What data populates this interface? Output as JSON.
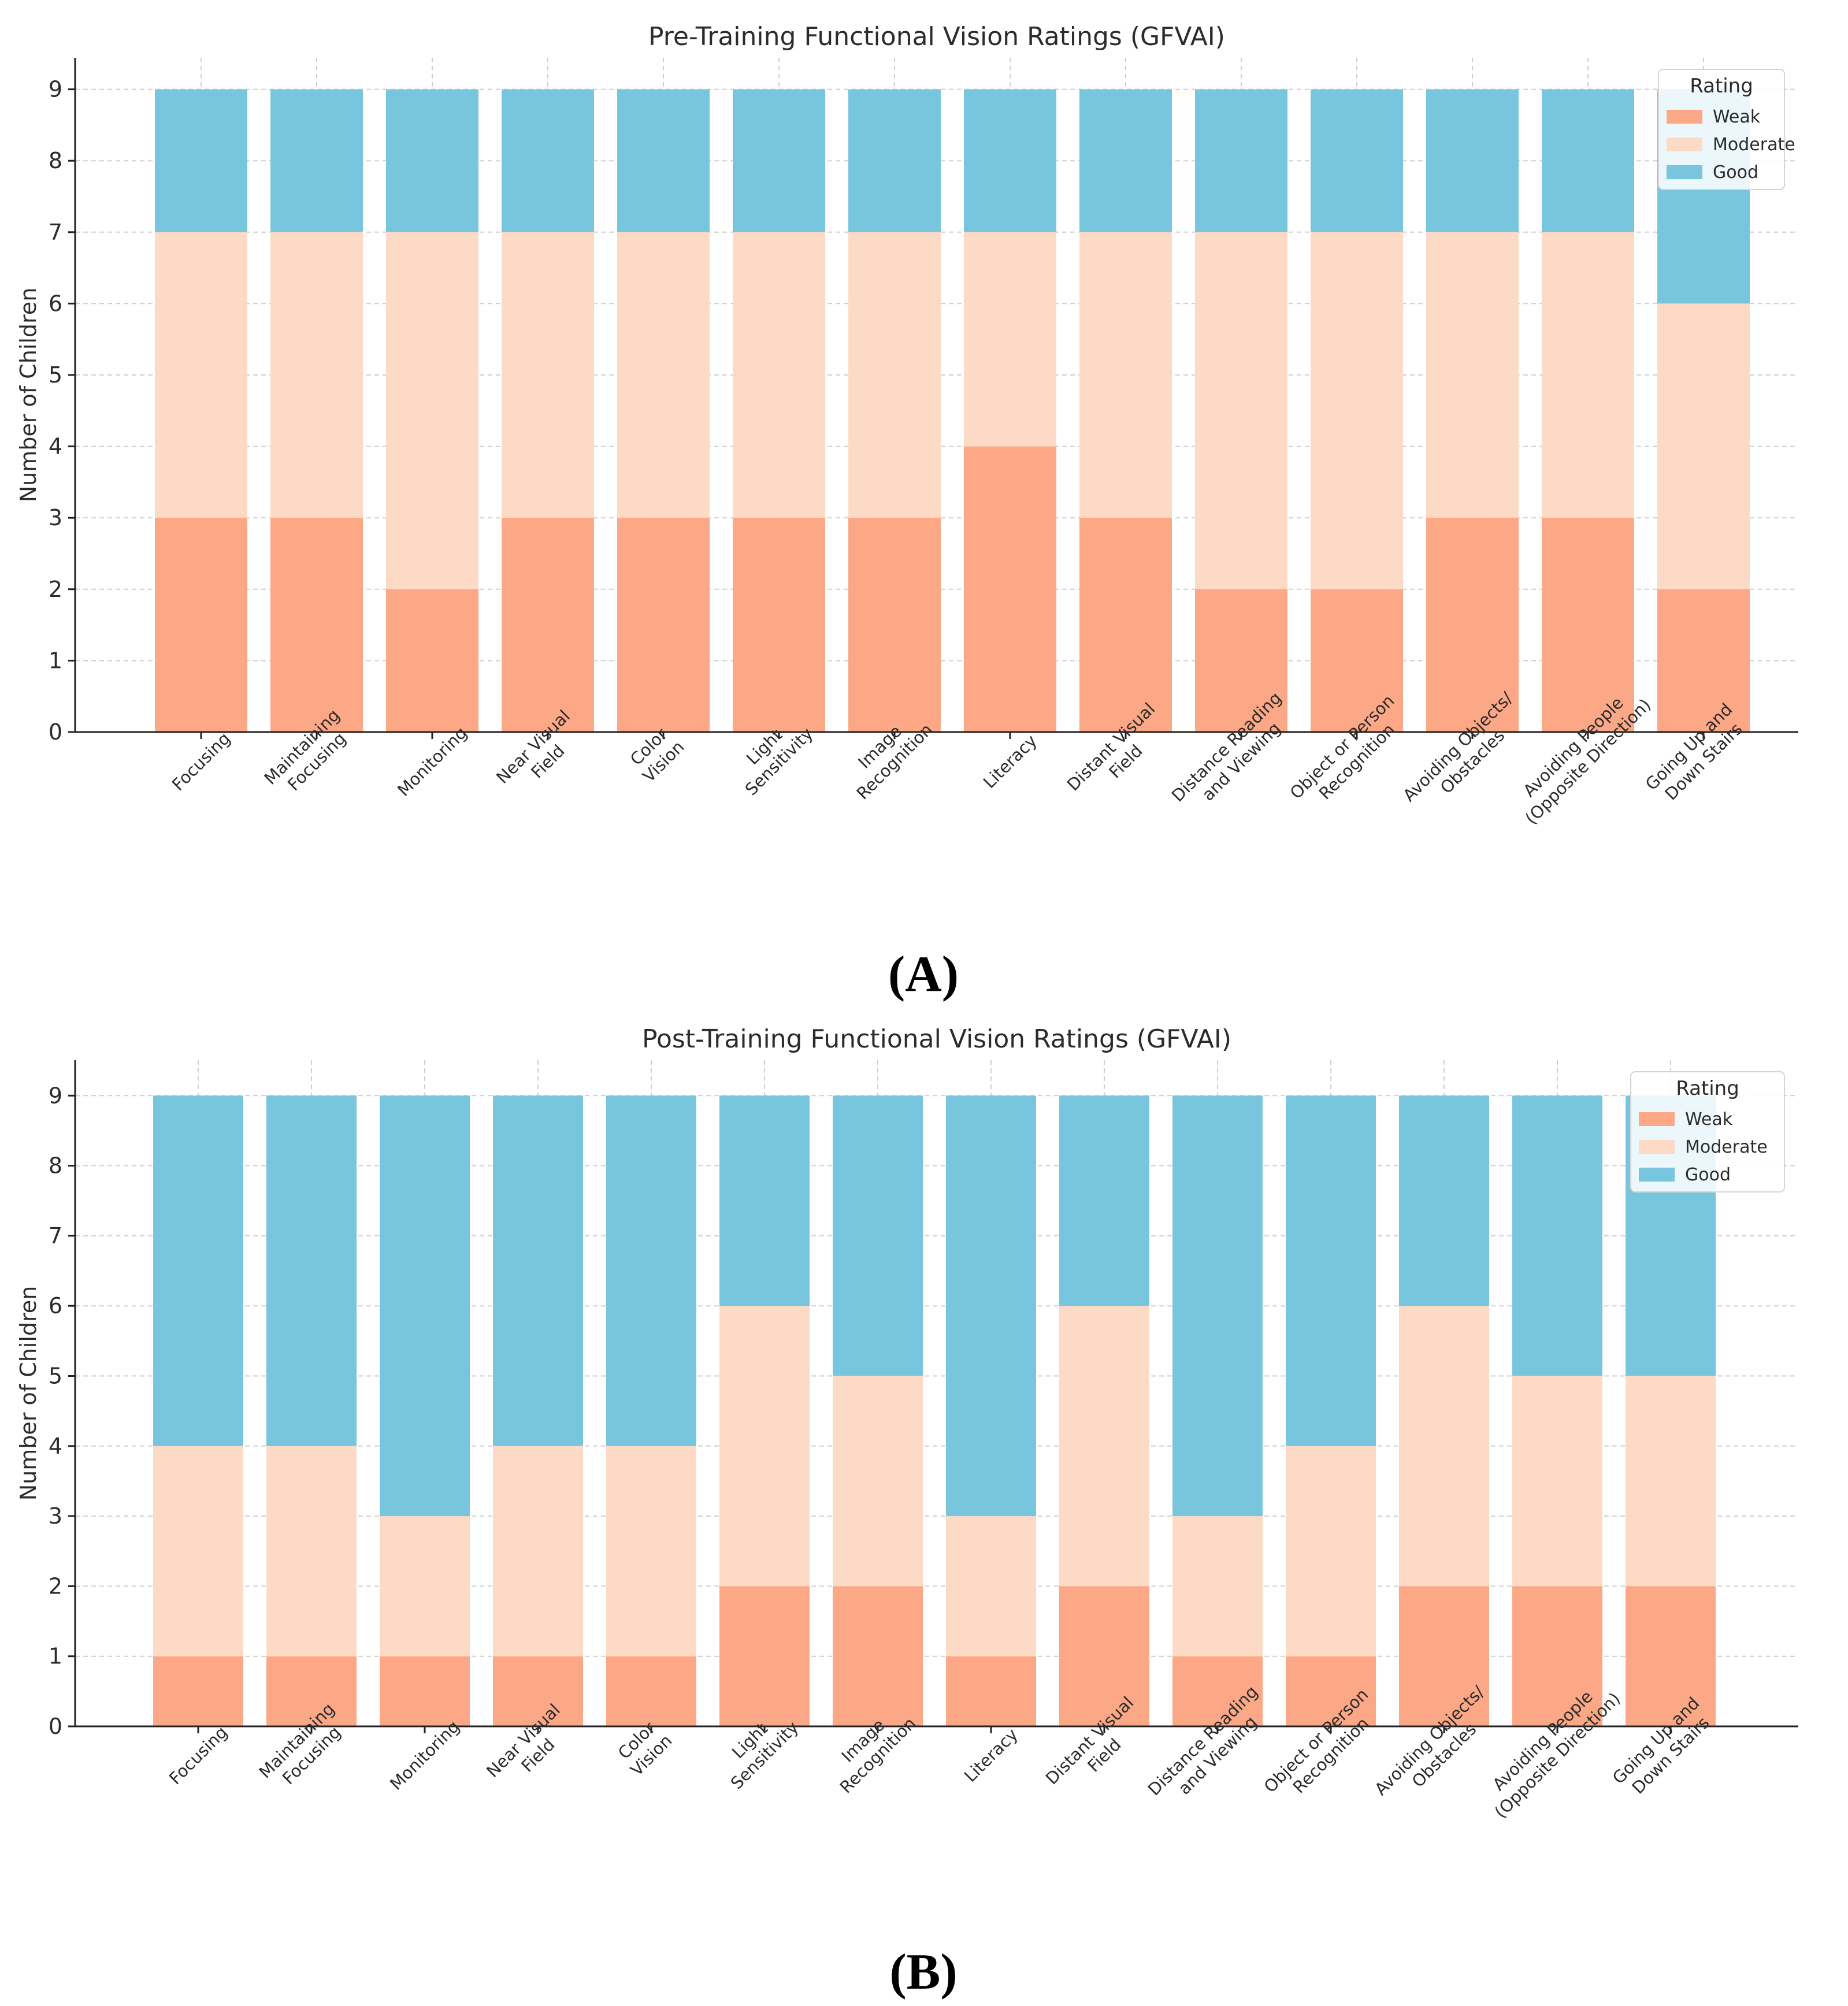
{
  "rating_colors": {
    "Weak": "#FCA886",
    "Moderate": "#FDDAC5",
    "Good": "#78C5DE"
  },
  "chart_data": [
    {
      "type": "bar",
      "stacked": true,
      "title": "Pre-Training Functional Vision Ratings (GFVAI)",
      "panel_label": "(A)",
      "xlabel": "",
      "ylabel": "Number of Children",
      "ylim": [
        0,
        9.4
      ],
      "yticks": [
        0,
        1,
        2,
        3,
        4,
        5,
        6,
        7,
        8,
        9
      ],
      "grid": true,
      "legend_title": "Rating",
      "legend_position": "top-right",
      "categories": [
        [
          "Focusing"
        ],
        [
          "Maintaining",
          "Focusing"
        ],
        [
          "Monitoring"
        ],
        [
          "Near Visual",
          "Field"
        ],
        [
          "Color",
          "Vision"
        ],
        [
          "Light",
          "Sensitivity"
        ],
        [
          "Image",
          "Recognition"
        ],
        [
          "Literacy"
        ],
        [
          "Distant Visual",
          "Field"
        ],
        [
          "Distance Reading",
          "and Viewing"
        ],
        [
          "Object or Person",
          "Recognition"
        ],
        [
          "Avoiding Objects/",
          "Obstacles"
        ],
        [
          "Avoiding People",
          "(Opposite Direction)"
        ],
        [
          "Going Up and",
          "Down Stairs"
        ]
      ],
      "series": [
        {
          "name": "Weak",
          "values": [
            3,
            3,
            2,
            3,
            3,
            3,
            3,
            4,
            3,
            2,
            2,
            3,
            3,
            2
          ]
        },
        {
          "name": "Moderate",
          "values": [
            4,
            4,
            5,
            4,
            4,
            4,
            4,
            3,
            4,
            5,
            5,
            4,
            4,
            4
          ]
        },
        {
          "name": "Good",
          "values": [
            2,
            2,
            2,
            2,
            2,
            2,
            2,
            2,
            2,
            2,
            2,
            2,
            2,
            3
          ]
        }
      ]
    },
    {
      "type": "bar",
      "stacked": true,
      "title": "Post-Training Functional Vision Ratings (GFVAI)",
      "panel_label": "(B)",
      "xlabel": "",
      "ylabel": "Number of Children",
      "ylim": [
        0,
        9.4
      ],
      "yticks": [
        0,
        1,
        2,
        3,
        4,
        5,
        6,
        7,
        8,
        9
      ],
      "grid": true,
      "legend_title": "Rating",
      "legend_position": "top-right",
      "categories": [
        [
          "Focusing"
        ],
        [
          "Maintaining",
          "Focusing"
        ],
        [
          "Monitoring"
        ],
        [
          "Near Visual",
          "Field"
        ],
        [
          "Color",
          "Vision"
        ],
        [
          "Light",
          "Sensitivity"
        ],
        [
          "Image",
          "Recognition"
        ],
        [
          "Literacy"
        ],
        [
          "Distant Visual",
          "Field"
        ],
        [
          "Distance Reading",
          "and Viewing"
        ],
        [
          "Object or Person",
          "Recognition"
        ],
        [
          "Avoiding Objects/",
          "Obstacles"
        ],
        [
          "Avoiding People",
          "(Opposite Direction)"
        ],
        [
          "Going Up and",
          "Down Stairs"
        ]
      ],
      "series": [
        {
          "name": "Weak",
          "values": [
            1,
            1,
            1,
            1,
            1,
            2,
            2,
            1,
            2,
            1,
            1,
            2,
            2,
            2
          ]
        },
        {
          "name": "Moderate",
          "values": [
            3,
            3,
            2,
            3,
            3,
            4,
            3,
            2,
            4,
            2,
            3,
            4,
            3,
            3
          ]
        },
        {
          "name": "Good",
          "values": [
            5,
            5,
            6,
            5,
            5,
            3,
            4,
            6,
            3,
            6,
            5,
            3,
            4,
            4
          ]
        }
      ]
    }
  ]
}
